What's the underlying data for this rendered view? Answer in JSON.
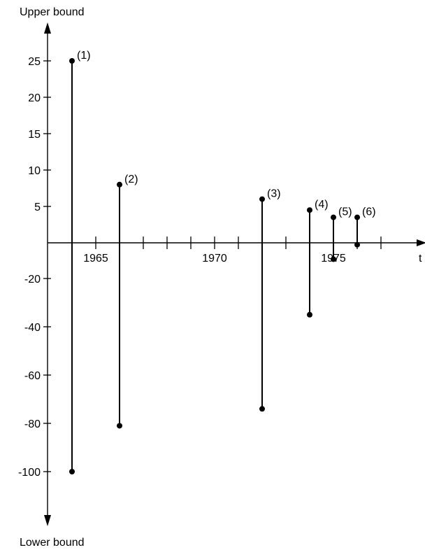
{
  "chart_data": {
    "type": "range",
    "top_label": "Upper bound",
    "bottom_label": "Lower bound",
    "x_axis_label": "t",
    "x_ticks": [
      "1965",
      "1970",
      "1975"
    ],
    "y_ticks_upper": [
      "25",
      "20",
      "15",
      "10",
      "5"
    ],
    "y_ticks_lower": [
      "-20",
      "-40",
      "-60",
      "-80",
      "-100"
    ],
    "series": [
      {
        "label": "(1)",
        "year": 1964.0,
        "upper": 25,
        "lower": -100
      },
      {
        "label": "(2)",
        "year": 1966.0,
        "upper": 8,
        "lower": -81
      },
      {
        "label": "(3)",
        "year": 1972.0,
        "upper": 6,
        "lower": -74
      },
      {
        "label": "(4)",
        "year": 1974.0,
        "upper": 4.5,
        "lower": -35
      },
      {
        "label": "(5)",
        "year": 1975.0,
        "upper": 3.5,
        "lower": -12
      },
      {
        "label": "(6)",
        "year": 1976.0,
        "upper": 3.5,
        "lower": -6
      }
    ]
  }
}
